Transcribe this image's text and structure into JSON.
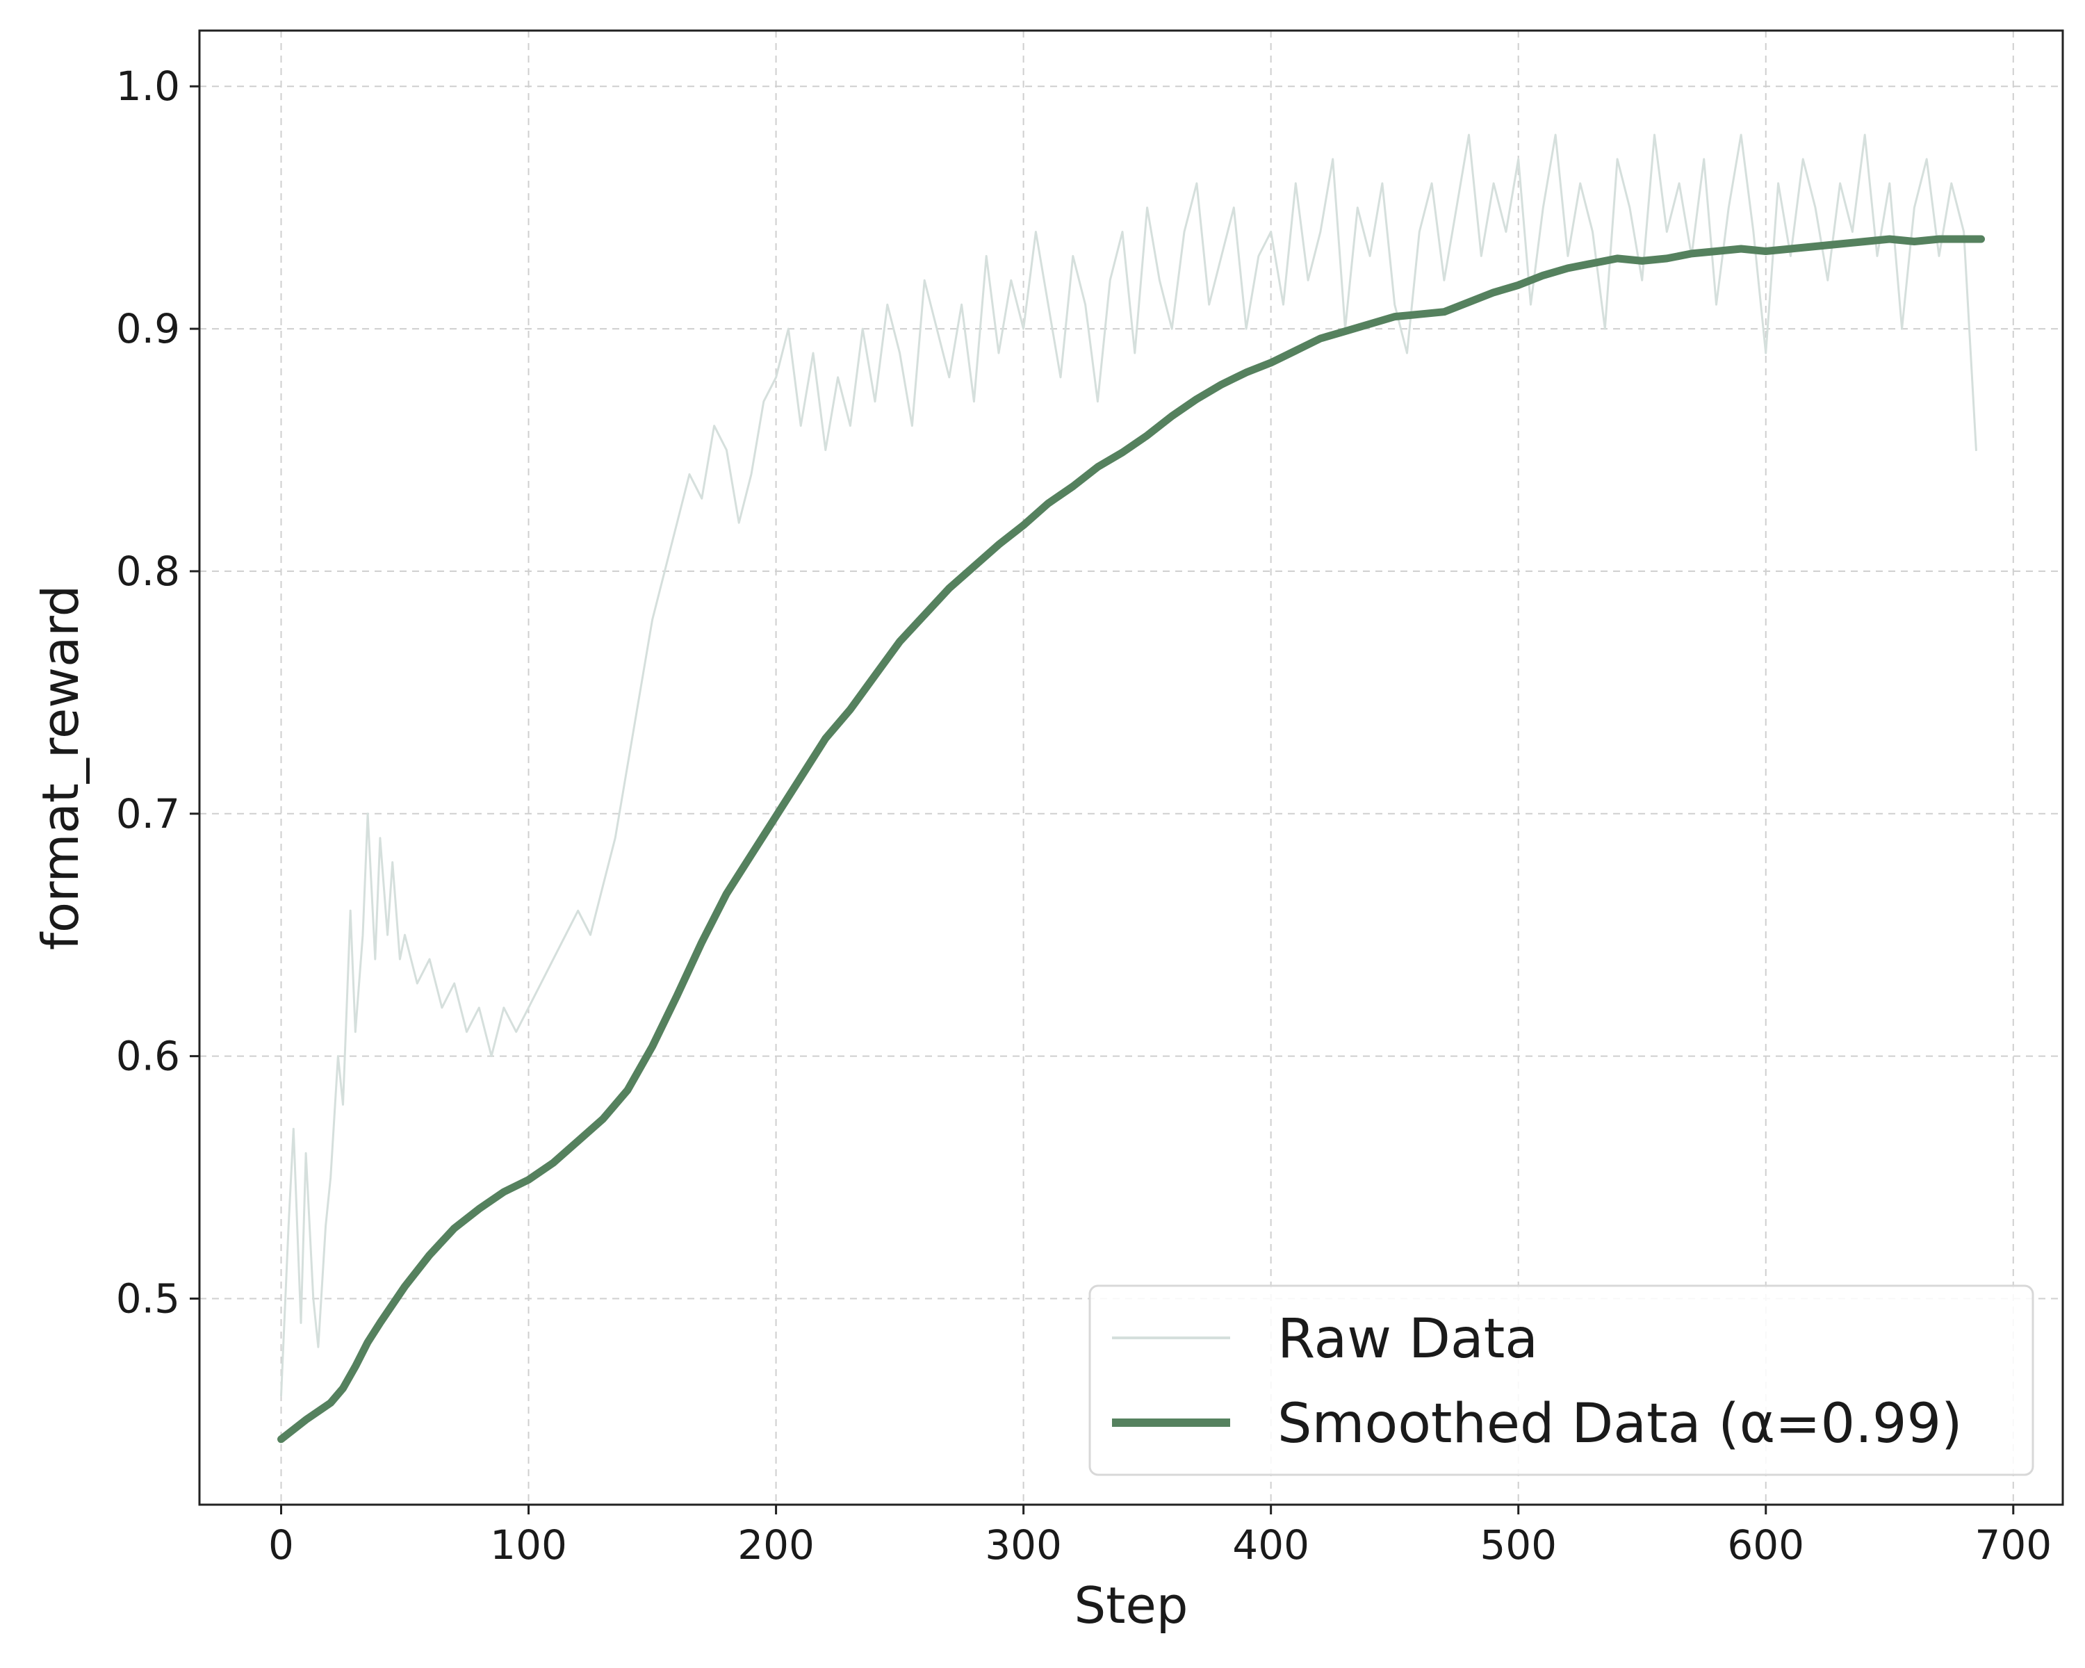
{
  "chart_data": {
    "type": "line",
    "title": "",
    "xlabel": "Step",
    "ylabel": "format_reward",
    "xlim": [
      -33,
      720
    ],
    "ylim": [
      0.415,
      1.023
    ],
    "xticks": [
      0,
      100,
      200,
      300,
      400,
      500,
      600,
      700
    ],
    "yticks": [
      0.5,
      0.6,
      0.7,
      0.8,
      0.9,
      1.0
    ],
    "xtick_labels": [
      "0",
      "100",
      "200",
      "300",
      "400",
      "500",
      "600",
      "700"
    ],
    "ytick_labels": [
      "0.5",
      "0.6",
      "0.7",
      "0.8",
      "0.9",
      "1.0"
    ],
    "grid": true,
    "legend_position": "lower-right",
    "series": [
      {
        "name": "Raw Data",
        "color": "#d5dfdc",
        "x": [
          0,
          3,
          5,
          8,
          10,
          13,
          15,
          18,
          20,
          23,
          25,
          28,
          30,
          33,
          35,
          38,
          40,
          43,
          45,
          48,
          50,
          55,
          60,
          65,
          70,
          75,
          80,
          85,
          90,
          95,
          100,
          105,
          110,
          115,
          120,
          125,
          130,
          135,
          140,
          145,
          150,
          155,
          160,
          165,
          170,
          175,
          180,
          185,
          190,
          195,
          200,
          205,
          210,
          215,
          220,
          225,
          230,
          235,
          240,
          245,
          250,
          255,
          260,
          265,
          270,
          275,
          280,
          285,
          290,
          295,
          300,
          305,
          310,
          315,
          320,
          325,
          330,
          335,
          340,
          345,
          350,
          355,
          360,
          365,
          370,
          375,
          380,
          385,
          390,
          395,
          400,
          405,
          410,
          415,
          420,
          425,
          430,
          435,
          440,
          445,
          450,
          455,
          460,
          465,
          470,
          475,
          480,
          485,
          490,
          495,
          500,
          505,
          510,
          515,
          520,
          525,
          530,
          535,
          540,
          545,
          550,
          555,
          560,
          565,
          570,
          575,
          580,
          585,
          590,
          595,
          600,
          605,
          610,
          615,
          620,
          625,
          630,
          635,
          640,
          645,
          650,
          655,
          660,
          665,
          670,
          675,
          680,
          685
        ],
        "values": [
          0.46,
          0.53,
          0.57,
          0.49,
          0.56,
          0.5,
          0.48,
          0.53,
          0.55,
          0.6,
          0.58,
          0.66,
          0.61,
          0.65,
          0.7,
          0.64,
          0.69,
          0.65,
          0.68,
          0.64,
          0.65,
          0.63,
          0.64,
          0.62,
          0.63,
          0.61,
          0.62,
          0.6,
          0.62,
          0.61,
          0.62,
          0.63,
          0.64,
          0.65,
          0.66,
          0.65,
          0.67,
          0.69,
          0.72,
          0.75,
          0.78,
          0.8,
          0.82,
          0.84,
          0.83,
          0.86,
          0.85,
          0.82,
          0.84,
          0.87,
          0.88,
          0.9,
          0.86,
          0.89,
          0.85,
          0.88,
          0.86,
          0.9,
          0.87,
          0.91,
          0.89,
          0.86,
          0.92,
          0.9,
          0.88,
          0.91,
          0.87,
          0.93,
          0.89,
          0.92,
          0.9,
          0.94,
          0.91,
          0.88,
          0.93,
          0.91,
          0.87,
          0.92,
          0.94,
          0.89,
          0.95,
          0.92,
          0.9,
          0.94,
          0.96,
          0.91,
          0.93,
          0.95,
          0.9,
          0.93,
          0.94,
          0.91,
          0.96,
          0.92,
          0.94,
          0.97,
          0.9,
          0.95,
          0.93,
          0.96,
          0.91,
          0.89,
          0.94,
          0.96,
          0.92,
          0.95,
          0.98,
          0.93,
          0.96,
          0.94,
          0.97,
          0.91,
          0.95,
          0.98,
          0.93,
          0.96,
          0.94,
          0.9,
          0.97,
          0.95,
          0.92,
          0.98,
          0.94,
          0.96,
          0.93,
          0.97,
          0.91,
          0.95,
          0.98,
          0.94,
          0.89,
          0.96,
          0.93,
          0.97,
          0.95,
          0.92,
          0.96,
          0.94,
          0.98,
          0.93,
          0.96,
          0.9,
          0.95,
          0.97,
          0.93,
          0.96,
          0.94,
          0.85
        ],
        "line_width": 3
      },
      {
        "name": "Smoothed Data (α=0.99)",
        "color": "#55815e",
        "x": [
          0,
          10,
          20,
          25,
          30,
          35,
          40,
          50,
          60,
          70,
          80,
          90,
          100,
          110,
          120,
          130,
          140,
          150,
          160,
          170,
          180,
          190,
          200,
          210,
          220,
          230,
          240,
          250,
          260,
          270,
          280,
          290,
          300,
          310,
          320,
          330,
          340,
          350,
          360,
          370,
          380,
          390,
          400,
          410,
          420,
          430,
          440,
          450,
          460,
          470,
          480,
          490,
          500,
          510,
          520,
          530,
          540,
          550,
          560,
          570,
          580,
          590,
          600,
          610,
          620,
          630,
          640,
          650,
          660,
          670,
          680,
          687
        ],
        "values": [
          0.442,
          0.45,
          0.457,
          0.463,
          0.472,
          0.482,
          0.49,
          0.505,
          0.518,
          0.529,
          0.537,
          0.544,
          0.549,
          0.556,
          0.565,
          0.574,
          0.586,
          0.604,
          0.625,
          0.647,
          0.667,
          0.683,
          0.699,
          0.715,
          0.731,
          0.743,
          0.757,
          0.771,
          0.782,
          0.793,
          0.802,
          0.811,
          0.819,
          0.828,
          0.835,
          0.843,
          0.849,
          0.856,
          0.864,
          0.871,
          0.877,
          0.882,
          0.886,
          0.891,
          0.896,
          0.899,
          0.902,
          0.905,
          0.906,
          0.907,
          0.911,
          0.915,
          0.918,
          0.922,
          0.925,
          0.927,
          0.929,
          0.928,
          0.929,
          0.931,
          0.932,
          0.933,
          0.932,
          0.933,
          0.934,
          0.935,
          0.936,
          0.937,
          0.936,
          0.937,
          0.937,
          0.937
        ],
        "line_width": 11
      }
    ]
  },
  "colors": {
    "grid": "#cfcfcf",
    "axes": "#222222",
    "legend_border": "#d8d8d8"
  }
}
